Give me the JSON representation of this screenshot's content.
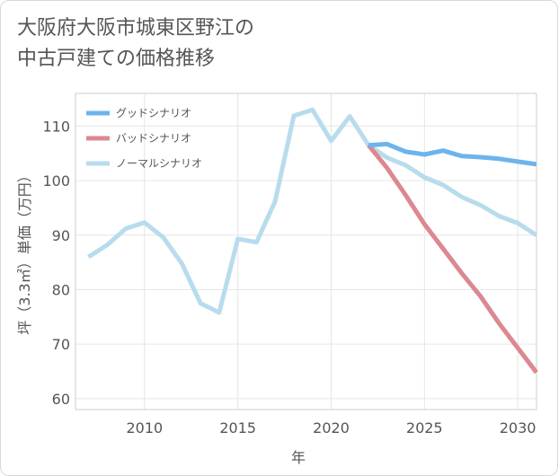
{
  "title_line1": "大阪府大阪市城東区野江の",
  "title_line2": "中古戸建ての価格推移",
  "chart_data": {
    "type": "line",
    "title": "大阪府大阪市城東区野江の中古戸建ての価格推移",
    "xlabel": "年",
    "ylabel": "坪（3.3㎡）単価（万円）",
    "xlim": [
      2006.3,
      2031
    ],
    "ylim": [
      58,
      116
    ],
    "xticks": [
      2010,
      2015,
      2020,
      2025,
      2030
    ],
    "yticks": [
      60,
      70,
      80,
      90,
      100,
      110
    ],
    "grid": true,
    "legend_position": "top-left",
    "series": [
      {
        "name": "グッドシナリオ",
        "color": "#6cb4ec",
        "x": [
          2022,
          2023,
          2024,
          2025,
          2026,
          2027,
          2028,
          2029,
          2030,
          2031
        ],
        "values": [
          106.5,
          106.7,
          105.3,
          104.8,
          105.5,
          104.5,
          104.3,
          104.0,
          103.5,
          103.0
        ]
      },
      {
        "name": "バッドシナリオ",
        "color": "#dc8890",
        "x": [
          2022,
          2023,
          2024,
          2025,
          2026,
          2027,
          2028,
          2029,
          2030,
          2031
        ],
        "values": [
          106.5,
          102.3,
          97.3,
          92.0,
          87.5,
          83.0,
          78.8,
          73.8,
          69.3,
          64.8
        ]
      },
      {
        "name": "ノーマルシナリオ",
        "color": "#b8dced",
        "x": [
          2007,
          2008,
          2009,
          2010,
          2011,
          2012,
          2013,
          2014,
          2015,
          2016,
          2017,
          2018,
          2019,
          2020,
          2021,
          2022,
          2023,
          2024,
          2025,
          2026,
          2027,
          2028,
          2029,
          2030,
          2031
        ],
        "values": [
          86.0,
          88.2,
          91.2,
          92.3,
          89.6,
          84.8,
          77.5,
          75.8,
          89.3,
          88.7,
          96.2,
          111.9,
          113.0,
          107.3,
          111.8,
          106.5,
          104.2,
          102.8,
          100.6,
          99.2,
          97.0,
          95.5,
          93.5,
          92.2,
          90.0
        ]
      }
    ]
  }
}
